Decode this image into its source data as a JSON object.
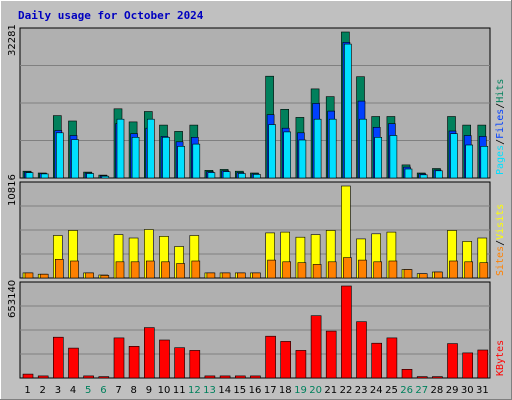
{
  "title": "Daily usage for October 2024",
  "colors": {
    "background": "#c0c0c0",
    "panel": "#b0b0b0",
    "hits": "#00805c",
    "files": "#0040ff",
    "pages": "#00e0ff",
    "visits": "#ffff00",
    "sites": "#ff8000",
    "kbytes": "#ff0000",
    "weekday_label": "#000000",
    "weekend_label": "#00805c"
  },
  "chart_data": [
    {
      "type": "bar",
      "panel": "hits-files-pages",
      "ymax_label": "32281",
      "ylim": [
        0,
        32281
      ],
      "legend": {
        "pages": "Pages",
        "files": "Files",
        "hits": "Hits",
        "sep": "/"
      },
      "categories": [
        "1",
        "2",
        "3",
        "4",
        "5",
        "6",
        "7",
        "8",
        "9",
        "10",
        "11",
        "12",
        "13",
        "14",
        "15",
        "16",
        "17",
        "18",
        "19",
        "20",
        "21",
        "22",
        "23",
        "24",
        "25",
        "26",
        "27",
        "28",
        "29",
        "30",
        "31"
      ],
      "weekend_days": [
        "5",
        "6",
        "12",
        "13",
        "19",
        "20",
        "26",
        "27"
      ],
      "series": [
        {
          "name": "Hits",
          "values": [
            1500,
            1100,
            13800,
            12600,
            1300,
            650,
            15300,
            12400,
            14700,
            11700,
            10300,
            11700,
            1700,
            1900,
            1500,
            1100,
            22500,
            15200,
            13400,
            19700,
            18000,
            32281,
            22400,
            13600,
            13600,
            2900,
            1100,
            2100,
            13600,
            11700,
            11700
          ]
        },
        {
          "name": "Files",
          "values": [
            1300,
            1000,
            10500,
            9400,
            1100,
            500,
            12000,
            9800,
            11000,
            9200,
            8000,
            9000,
            1400,
            1600,
            1200,
            900,
            14000,
            11000,
            10000,
            16500,
            14800,
            30000,
            17000,
            11200,
            12000,
            2400,
            900,
            1800,
            10400,
            9400,
            9200
          ]
        },
        {
          "name": "Pages",
          "values": [
            1200,
            900,
            10000,
            8500,
            1000,
            400,
            13000,
            9000,
            13000,
            9000,
            7000,
            7500,
            1200,
            1400,
            1000,
            800,
            11800,
            10200,
            8400,
            13000,
            13000,
            29600,
            13000,
            9000,
            9400,
            2000,
            700,
            1600,
            9800,
            7300,
            7000
          ]
        }
      ]
    },
    {
      "type": "bar",
      "panel": "visits-sites",
      "ymax_label": "10816",
      "ylim": [
        0,
        10816
      ],
      "legend": {
        "sites": "Sites",
        "visits": "Visits",
        "sep": "/"
      },
      "categories": [
        "1",
        "2",
        "3",
        "4",
        "5",
        "6",
        "7",
        "8",
        "9",
        "10",
        "11",
        "12",
        "13",
        "14",
        "15",
        "16",
        "17",
        "18",
        "19",
        "20",
        "21",
        "22",
        "23",
        "24",
        "25",
        "26",
        "27",
        "28",
        "29",
        "30",
        "31"
      ],
      "series": [
        {
          "name": "Visits",
          "values": [
            600,
            450,
            5000,
            5600,
            600,
            350,
            5100,
            4700,
            5700,
            4900,
            3700,
            5000,
            600,
            600,
            600,
            600,
            5300,
            5400,
            4800,
            5100,
            5600,
            10816,
            4600,
            5200,
            5400,
            1000,
            500,
            700,
            5600,
            4300,
            4700
          ]
        },
        {
          "name": "Sites",
          "values": [
            600,
            450,
            2200,
            2000,
            600,
            300,
            1900,
            1900,
            2000,
            1900,
            1700,
            2000,
            600,
            600,
            600,
            600,
            2100,
            1900,
            1800,
            1600,
            1900,
            2400,
            2100,
            1900,
            2000,
            1000,
            500,
            700,
            2000,
            1900,
            1800
          ]
        }
      ]
    },
    {
      "type": "bar",
      "panel": "kbytes",
      "ymax_label": "653140",
      "ylim": [
        0,
        653140
      ],
      "legend": {
        "kbytes": "KBytes"
      },
      "categories": [
        "1",
        "2",
        "3",
        "4",
        "5",
        "6",
        "7",
        "8",
        "9",
        "10",
        "11",
        "12",
        "13",
        "14",
        "15",
        "16",
        "17",
        "18",
        "19",
        "20",
        "21",
        "22",
        "23",
        "24",
        "25",
        "26",
        "27",
        "28",
        "29",
        "30",
        "31"
      ],
      "series": [
        {
          "name": "KBytes",
          "values": [
            28000,
            15000,
            290000,
            212000,
            15000,
            10000,
            285000,
            225000,
            358000,
            270000,
            215000,
            196000,
            15000,
            15000,
            15000,
            15000,
            297000,
            260000,
            196000,
            442000,
            333000,
            653140,
            400000,
            247000,
            285000,
            62000,
            10000,
            10000,
            244000,
            178000,
            199000
          ]
        }
      ]
    }
  ]
}
